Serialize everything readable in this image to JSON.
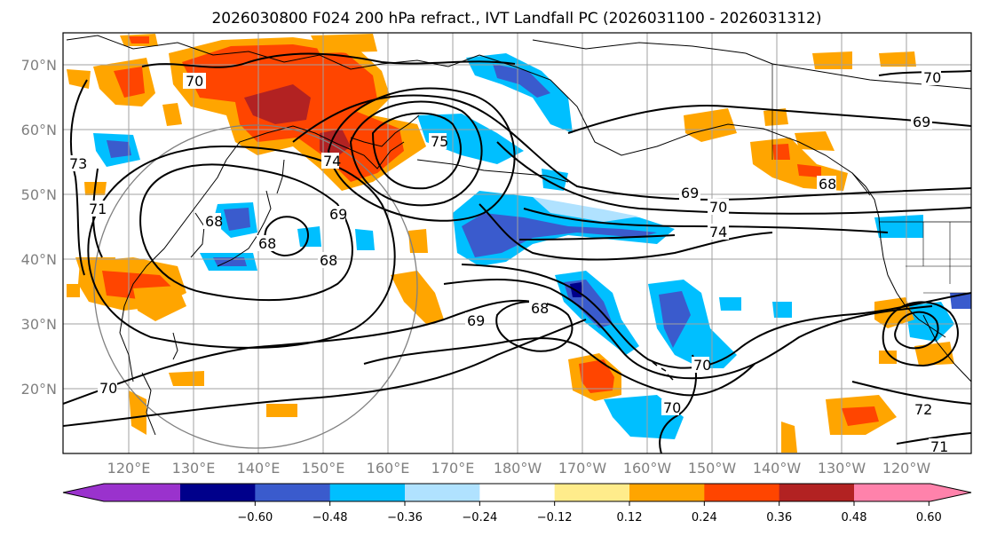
{
  "title": "2026030800 F024 200 hPa refract., IVT Landfall PC (2026031100 - 2026031312)",
  "lat_labels": [
    "70°N",
    "60°N",
    "50°N",
    "40°N",
    "30°N",
    "20°N"
  ],
  "lon_labels": [
    "120°E",
    "130°E",
    "140°E",
    "150°E",
    "160°E",
    "170°E",
    "180°W",
    "170°W",
    "160°W",
    "150°W",
    "140°W",
    "130°W",
    "120°W"
  ],
  "colorbar": {
    "tick_labels": [
      "−0.60",
      "−0.48",
      "−0.36",
      "−0.24",
      "−0.12",
      "0.12",
      "0.24",
      "0.36",
      "0.48",
      "0.60"
    ],
    "colors": [
      "#9a32cd",
      "#00008b",
      "#3a5bcd",
      "#00bfff",
      "#b0e2ff",
      "#ffffff",
      "#ffec8b",
      "#ffa500",
      "#ff4500",
      "#b22222",
      "#ff82ab"
    ]
  },
  "contour_labels": [
    "70",
    "73",
    "71",
    "69",
    "68",
    "68",
    "68",
    "75",
    "74",
    "69",
    "70",
    "74",
    "69",
    "68",
    "70",
    "70",
    "70",
    "69",
    "68",
    "70",
    "72",
    "71"
  ]
}
